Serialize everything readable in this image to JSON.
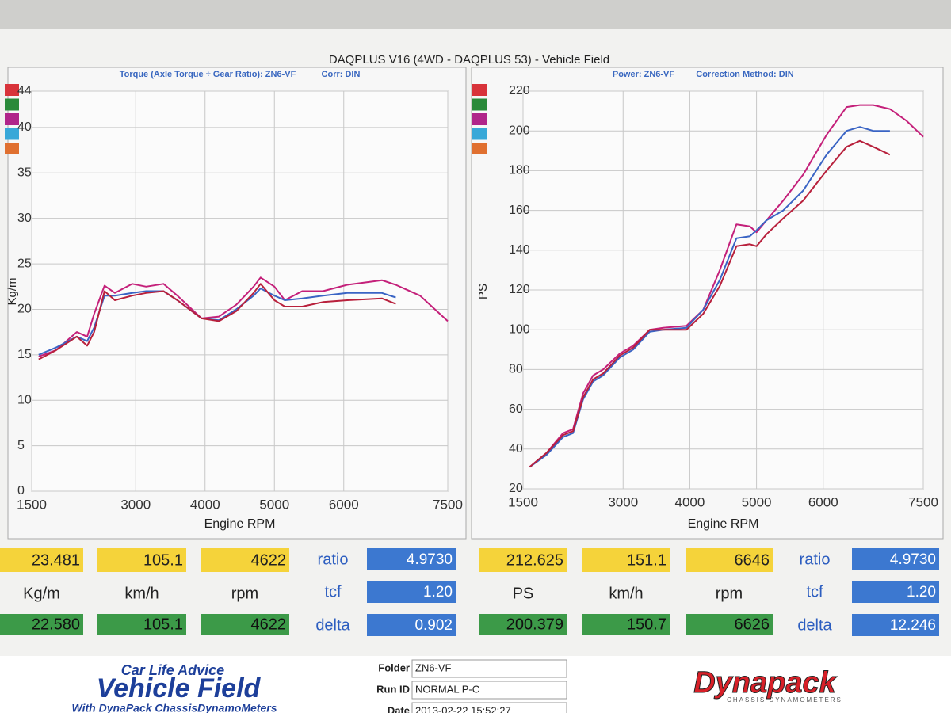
{
  "header": {
    "title": "DAQPLUS V16 (4WD - DAQPLUS 53) - Vehicle Field"
  },
  "chart_data": [
    {
      "type": "line",
      "title": "Torque (Axle Torque ÷ Gear Ratio): ZN6-VF",
      "subtitle": "Corr: DIN",
      "x_label": "Engine RPM",
      "y_label": "Kg/m",
      "x": [
        1600,
        1850,
        2150,
        2300,
        2400,
        2550,
        2700,
        2950,
        3150,
        3400,
        3600,
        3950,
        4200,
        4450,
        4700,
        4800,
        5000,
        5150,
        5400,
        5700,
        6050,
        6550,
        6750,
        7100,
        7500
      ],
      "series": [
        {
          "color": "#c4207a",
          "values": [
            14.8,
            15.5,
            17.5,
            17,
            19.5,
            22.6,
            21.8,
            22.8,
            22.5,
            22.8,
            21.5,
            19,
            19.2,
            20.5,
            22.5,
            23.5,
            22.5,
            21,
            22,
            22,
            22.7,
            23.2,
            22.7,
            21.5,
            18.7
          ]
        },
        {
          "color": "#3a64c4",
          "values": [
            15,
            15.8,
            17,
            16.5,
            18,
            21.5,
            21.5,
            21.8,
            22,
            22,
            21,
            19,
            18.8,
            20,
            21.5,
            22.3,
            21.5,
            21,
            21.2,
            21.5,
            21.8,
            21.8,
            21.3,
            null,
            null
          ]
        },
        {
          "color": "#b8203c",
          "values": [
            14.5,
            15.5,
            17,
            16,
            17.5,
            22,
            21,
            21.5,
            21.8,
            22,
            21,
            19,
            18.7,
            19.8,
            21.8,
            22.8,
            21,
            20.3,
            20.3,
            20.8,
            21,
            21.2,
            20.6,
            null,
            null
          ]
        }
      ],
      "xlim": [
        1500,
        7500
      ],
      "xticks": [
        1500,
        3000,
        4000,
        5000,
        6000,
        7500
      ],
      "ylim": [
        0,
        44
      ],
      "yticks": [
        0,
        5,
        10,
        15,
        20,
        25,
        30,
        35,
        40,
        44
      ],
      "grid": true
    },
    {
      "type": "line",
      "title": "Power: ZN6-VF",
      "subtitle": "Correction Method: DIN",
      "x_label": "Engine RPM",
      "y_label": "PS",
      "x": [
        1600,
        1850,
        2100,
        2250,
        2400,
        2550,
        2700,
        2950,
        3150,
        3400,
        3600,
        3950,
        4200,
        4450,
        4700,
        4900,
        5000,
        5150,
        5400,
        5700,
        6050,
        6350,
        6550,
        6750,
        7000,
        7250,
        7500
      ],
      "series": [
        {
          "color": "#c4207a",
          "values": [
            31,
            38,
            48,
            50,
            68,
            77,
            80,
            88,
            92,
            100,
            101,
            102,
            110,
            130,
            153,
            152,
            149,
            155,
            165,
            178,
            198,
            212,
            213,
            213,
            211,
            205,
            197
          ]
        },
        {
          "color": "#3a64c4",
          "values": [
            31,
            37,
            46,
            48,
            65,
            74,
            77,
            86,
            90,
            99,
            100,
            101,
            110,
            125,
            146,
            147,
            150,
            155,
            160,
            170,
            188,
            200,
            202,
            200,
            200,
            null,
            null
          ]
        },
        {
          "color": "#b8203c",
          "values": [
            31,
            38,
            47,
            49,
            66,
            75,
            78,
            87,
            91,
            100,
            100,
            100,
            108,
            122,
            142,
            143,
            142,
            148,
            156,
            165,
            180,
            192,
            195,
            192,
            188,
            null,
            null
          ]
        }
      ],
      "xlim": [
        1500,
        7500
      ],
      "xticks": [
        1500,
        3000,
        4000,
        5000,
        6000,
        7500
      ],
      "ylim": [
        20,
        220
      ],
      "yticks": [
        20,
        40,
        60,
        80,
        100,
        120,
        140,
        160,
        180,
        200,
        220
      ],
      "grid": true
    }
  ],
  "readouts": [
    {
      "top": [
        "23.481",
        "105.1",
        "4622"
      ],
      "units": [
        "Kg/m",
        "km/h",
        "rpm"
      ],
      "bottom": [
        "22.580",
        "105.1",
        "4622"
      ],
      "params": [
        {
          "label": "ratio",
          "value": "4.9730"
        },
        {
          "label": "tcf",
          "value": "1.20"
        },
        {
          "label": "delta",
          "value": "0.902"
        }
      ]
    },
    {
      "top": [
        "212.625",
        "151.1",
        "6646"
      ],
      "units": [
        "PS",
        "km/h",
        "rpm"
      ],
      "bottom": [
        "200.379",
        "150.7",
        "6626"
      ],
      "params": [
        {
          "label": "ratio",
          "value": "4.9730"
        },
        {
          "label": "tcf",
          "value": "1.20"
        },
        {
          "label": "delta",
          "value": "12.246"
        }
      ]
    }
  ],
  "footer": {
    "tagline": "Car Life Advice",
    "brand": "Vehicle Field",
    "brand_sub": "With DynaPack ChassisDynamoMeters",
    "fields": [
      {
        "label": "Folder",
        "value": "ZN6-VF"
      },
      {
        "label": "Run ID",
        "value": "NORMAL P-C"
      },
      {
        "label": "Date",
        "value": "2013-02-22 15:52:27"
      }
    ],
    "logo": "Dynapack",
    "logo_sub": "CHASSIS DYNAMOMETERS"
  }
}
